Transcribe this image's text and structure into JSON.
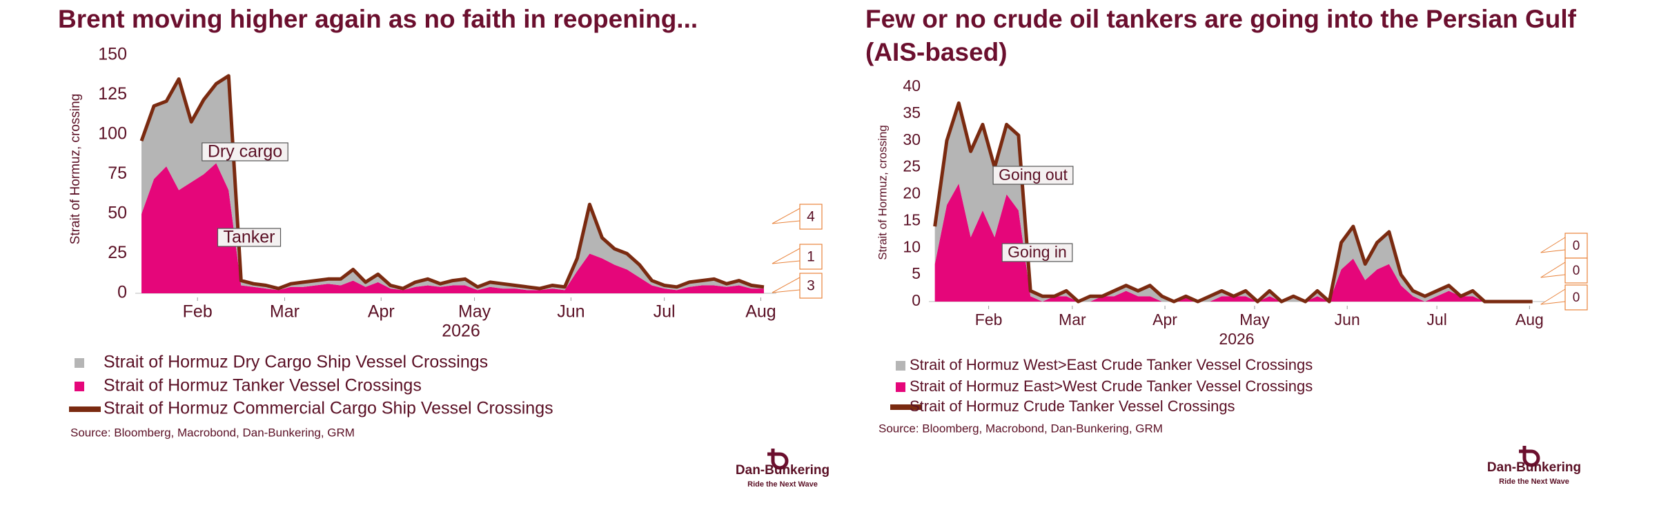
{
  "chart_data": [
    {
      "type": "area",
      "title": "Brent moving higher again as no faith in reopening...",
      "y_label": "Strait of Hormuz, crossing",
      "x_label": "2026",
      "x": [
        28,
        32,
        36,
        40,
        44,
        48,
        52,
        56,
        60,
        64,
        68,
        72,
        76,
        80,
        84,
        88,
        92,
        96,
        100,
        104,
        108,
        112,
        116,
        120,
        124,
        128,
        132,
        136,
        140,
        144,
        148,
        152,
        156,
        160,
        164,
        168,
        172,
        176,
        180,
        184,
        188,
        192,
        196,
        200,
        204,
        208,
        212,
        216,
        220,
        224,
        228
      ],
      "xlim": [
        26,
        232
      ],
      "xticks": [
        {
          "value": 46,
          "label": "Feb"
        },
        {
          "value": 74,
          "label": "Mar"
        },
        {
          "value": 105,
          "label": "Apr"
        },
        {
          "value": 135,
          "label": "May"
        },
        {
          "value": 166,
          "label": "Jun"
        },
        {
          "value": 196,
          "label": "Jul"
        },
        {
          "value": 227,
          "label": "Aug"
        }
      ],
      "ylim": [
        0,
        150
      ],
      "yticks": [
        0,
        25,
        50,
        75,
        100,
        125,
        150
      ],
      "grid": false,
      "series": [
        {
          "name": "Strait of Hormuz Dry Cargo Ship Vessel Crossings",
          "color": "#b5b5b5",
          "stack": true,
          "values": [
            46,
            46,
            41,
            70,
            38,
            47,
            50,
            72,
            3,
            2,
            2,
            1,
            2,
            3,
            3,
            3,
            4,
            7,
            3,
            5,
            2,
            1,
            3,
            4,
            2,
            3,
            4,
            2,
            3,
            3,
            2,
            2,
            1,
            2,
            2,
            8,
            31,
            13,
            10,
            10,
            8,
            3,
            2,
            2,
            3,
            3,
            4,
            2,
            3,
            2,
            1
          ]
        },
        {
          "name": "Strait of Hormuz Tanker Vessel Crossings",
          "color": "#e5067a",
          "stack": true,
          "values": [
            50,
            72,
            80,
            65,
            70,
            75,
            82,
            65,
            5,
            4,
            3,
            2,
            4,
            4,
            5,
            6,
            5,
            8,
            4,
            7,
            3,
            2,
            4,
            5,
            4,
            5,
            5,
            2,
            4,
            3,
            3,
            2,
            2,
            3,
            2,
            14,
            25,
            22,
            18,
            15,
            10,
            5,
            3,
            2,
            4,
            5,
            5,
            4,
            5,
            3,
            3
          ]
        },
        {
          "name": "Strait of Hormuz Commercial Cargo Ship Vessel Crossings",
          "color": "#7a2a10",
          "stack": false,
          "values": [
            96,
            118,
            121,
            135,
            108,
            122,
            132,
            137,
            8,
            6,
            5,
            3,
            6,
            7,
            8,
            9,
            9,
            15,
            7,
            12,
            5,
            3,
            7,
            9,
            6,
            8,
            9,
            4,
            7,
            6,
            5,
            4,
            3,
            5,
            4,
            22,
            56,
            35,
            28,
            25,
            18,
            8,
            5,
            4,
            7,
            8,
            9,
            6,
            8,
            5,
            4
          ]
        }
      ],
      "annotations": [
        "Dry cargo",
        "Tanker"
      ],
      "source": "Source: Bloomberg, Macrobond, Dan-Bunkering, GRM",
      "logo": {
        "name": "Dan-Bunkering",
        "tagline": "Ride the Next Wave"
      }
    },
    {
      "type": "area",
      "title": "Few or no crude oil tankers are going into the Persian Gulf (AIS-based)",
      "y_label": "Strait of Hormuz, crossing",
      "x_label": "2026",
      "x": [
        28,
        32,
        36,
        40,
        44,
        48,
        52,
        56,
        60,
        64,
        68,
        72,
        76,
        80,
        84,
        88,
        92,
        96,
        100,
        104,
        108,
        112,
        116,
        120,
        124,
        128,
        132,
        136,
        140,
        144,
        148,
        152,
        156,
        160,
        164,
        168,
        172,
        176,
        180,
        184,
        188,
        192,
        196,
        200,
        204,
        208,
        212,
        216,
        220,
        224,
        228
      ],
      "xlim": [
        26,
        232
      ],
      "xticks": [
        {
          "value": 46,
          "label": "Feb"
        },
        {
          "value": 74,
          "label": "Mar"
        },
        {
          "value": 105,
          "label": "Apr"
        },
        {
          "value": 135,
          "label": "May"
        },
        {
          "value": 166,
          "label": "Jun"
        },
        {
          "value": 196,
          "label": "Jul"
        },
        {
          "value": 227,
          "label": "Aug"
        }
      ],
      "ylim": [
        0,
        40
      ],
      "yticks": [
        0,
        5,
        10,
        15,
        20,
        25,
        30,
        35,
        40
      ],
      "grid": false,
      "series": [
        {
          "name": "Strait of Hormuz West>East Crude Tanker Vessel Crossings",
          "color": "#b5b5b5",
          "stack": true,
          "values": [
            7,
            12,
            15,
            16,
            16,
            13,
            13,
            14,
            1,
            1,
            0,
            1,
            0,
            1,
            0,
            1,
            1,
            1,
            2,
            1,
            0,
            0,
            0,
            1,
            1,
            0,
            1,
            0,
            1,
            0,
            1,
            0,
            1,
            0,
            5,
            6,
            3,
            5,
            6,
            2,
            1,
            1,
            1,
            1,
            0,
            1,
            0,
            0,
            0,
            0,
            0
          ]
        },
        {
          "name": "Strait of Hormuz East>West Crude Tanker Vessel Crossings",
          "color": "#e5067a",
          "stack": true,
          "values": [
            7,
            18,
            22,
            12,
            17,
            12,
            20,
            17,
            1,
            0,
            1,
            1,
            0,
            0,
            1,
            1,
            2,
            1,
            1,
            0,
            0,
            1,
            0,
            0,
            1,
            1,
            1,
            0,
            1,
            0,
            0,
            0,
            1,
            0,
            6,
            8,
            4,
            6,
            7,
            3,
            1,
            0,
            1,
            2,
            1,
            1,
            0,
            0,
            0,
            0,
            0
          ]
        },
        {
          "name": "Strait of Hormuz Crude Tanker Vessel Crossings",
          "color": "#7a2a10",
          "stack": false,
          "values": [
            14,
            30,
            37,
            28,
            33,
            25,
            33,
            31,
            2,
            1,
            1,
            2,
            0,
            1,
            1,
            2,
            3,
            2,
            3,
            1,
            0,
            1,
            0,
            1,
            2,
            1,
            2,
            0,
            2,
            0,
            1,
            0,
            2,
            0,
            11,
            14,
            7,
            11,
            13,
            5,
            2,
            1,
            2,
            3,
            1,
            2,
            0,
            0,
            0,
            0,
            0
          ]
        }
      ],
      "annotations": [
        "Going out",
        "Going in"
      ],
      "source": "Source: Bloomberg, Macrobond, Dan-Bunkering, GRM",
      "logo": {
        "name": "Dan-Bunkering",
        "tagline": "Ride the Next Wave"
      }
    }
  ]
}
